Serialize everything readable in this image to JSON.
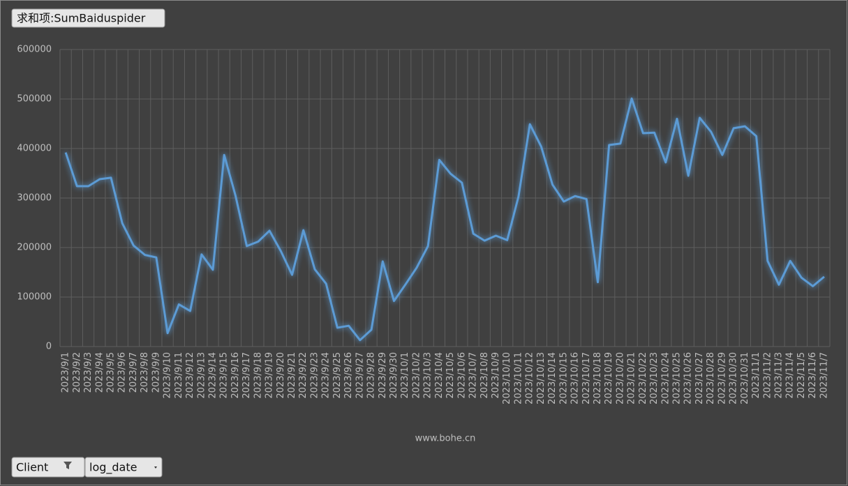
{
  "field_button": "求和项:SumBaiduspider",
  "filter_buttons": [
    "Client",
    "log_date"
  ],
  "chart_data": {
    "type": "line",
    "x_label": "www.bohe.cn",
    "categories": [
      "2023/9/1",
      "2023/9/2",
      "2023/9/3",
      "2023/9/4",
      "2023/9/5",
      "2023/9/6",
      "2023/9/7",
      "2023/9/8",
      "2023/9/9",
      "2023/9/10",
      "2023/9/11",
      "2023/9/12",
      "2023/9/13",
      "2023/9/14",
      "2023/9/15",
      "2023/9/16",
      "2023/9/17",
      "2023/9/18",
      "2023/9/19",
      "2023/9/20",
      "2023/9/21",
      "2023/9/22",
      "2023/9/23",
      "2023/9/24",
      "2023/9/25",
      "2023/9/26",
      "2023/9/27",
      "2023/9/28",
      "2023/9/29",
      "2023/9/30",
      "2023/10/1",
      "2023/10/2",
      "2023/10/3",
      "2023/10/4",
      "2023/10/5",
      "2023/10/6",
      "2023/10/7",
      "2023/10/8",
      "2023/10/9",
      "2023/10/10",
      "2023/10/11",
      "2023/10/12",
      "2023/10/13",
      "2023/10/14",
      "2023/10/15",
      "2023/10/16",
      "2023/10/17",
      "2023/10/18",
      "2023/10/19",
      "2023/10/20",
      "2023/10/21",
      "2023/10/22",
      "2023/10/23",
      "2023/10/24",
      "2023/10/25",
      "2023/10/26",
      "2023/10/27",
      "2023/10/28",
      "2023/10/29",
      "2023/10/30",
      "2023/10/31",
      "2023/11/1",
      "2023/11/2",
      "2023/11/3",
      "2023/11/4",
      "2023/11/5",
      "2023/11/6",
      "2023/11/7"
    ],
    "values": [
      392000,
      324000,
      324000,
      338000,
      341000,
      249000,
      204000,
      185000,
      180000,
      27000,
      85000,
      72000,
      186000,
      155000,
      387000,
      305000,
      203000,
      212000,
      234000,
      193000,
      145000,
      235000,
      156000,
      127000,
      38000,
      42000,
      13000,
      34000,
      172000,
      92000,
      125000,
      159000,
      203000,
      377000,
      349000,
      331000,
      228000,
      214000,
      224000,
      215000,
      303000,
      449000,
      404000,
      327000,
      293000,
      304000,
      298000,
      130000,
      407000,
      410000,
      501000,
      431000,
      432000,
      372000,
      460000,
      345000,
      462000,
      434000,
      387000,
      441000,
      445000,
      425000,
      173000,
      125000,
      173000,
      139000,
      122000,
      141000
    ],
    "color": "#5b9bd5",
    "ylim": [
      0,
      600000
    ],
    "yticks": [
      0,
      100000,
      200000,
      300000,
      400000,
      500000,
      600000
    ],
    "grid": true
  }
}
